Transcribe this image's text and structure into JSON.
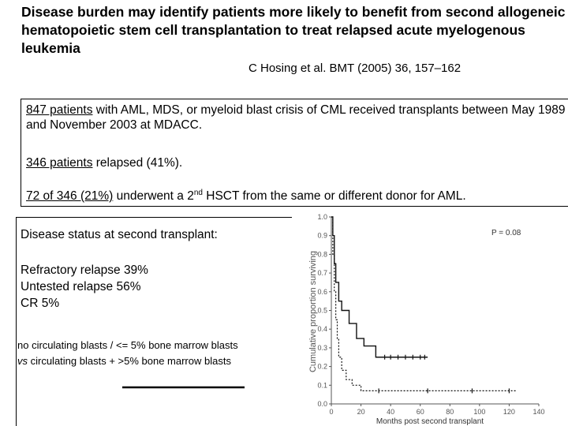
{
  "title": "Disease burden may identify patients more likely to benefit from second allogeneic hematopoietic stem cell transplantation to treat relapsed acute myelogenous leukemia",
  "citation": "C Hosing et al. BMT (2005) 36, 157–162",
  "box": {
    "line1_link": "847 patients",
    "line1_rest": " with AML, MDS, or myeloid blast crisis of CML received transplants between May 1989 and November 2003 at MDACC.",
    "line2_link": "346 patients",
    "line2_rest": " relapsed (41%).",
    "line3_link": "72 of 346 (21%)",
    "line3_rest_a": " underwent a 2",
    "line3_sup": "nd",
    "line3_rest_b": " HSCT from the same or different donor for AML."
  },
  "left": {
    "status_heading": "Disease status at second transplant:",
    "status_items": [
      "Refractory relapse 39%",
      "Untested relapse  56%",
      "CR 5%"
    ],
    "compare_line1": "no circulating blasts / <=  5% bone marrow blasts",
    "compare_line2_vs": "vs",
    "compare_line2_rest": " circulating blasts + >5% bone marrow blasts"
  },
  "chart_data": {
    "type": "line",
    "xlabel": "Months post second transplant",
    "ylabel": "Cumulative proportion surviving",
    "xlim": [
      0,
      140
    ],
    "ylim": [
      0,
      1.0
    ],
    "x_ticks": [
      "0",
      "20",
      "40",
      "60",
      "80",
      "100",
      "120",
      "140"
    ],
    "y_ticks": [
      "0.0",
      "0.1",
      "0.2",
      "0.3",
      "0.4",
      "0.5",
      "0.6",
      "0.7",
      "0.8",
      "0.9",
      "1.0"
    ],
    "annotation": "P = 0.08",
    "series": [
      {
        "style": "solid",
        "x": [
          0,
          1,
          1,
          2,
          2,
          3,
          3,
          5,
          5,
          7,
          7,
          12,
          12,
          17,
          17,
          22,
          22,
          30,
          30,
          65
        ],
        "y": [
          1.0,
          1.0,
          0.9,
          0.9,
          0.75,
          0.75,
          0.65,
          0.65,
          0.55,
          0.55,
          0.5,
          0.5,
          0.43,
          0.43,
          0.35,
          0.35,
          0.31,
          0.31,
          0.25,
          0.25
        ],
        "censored_x": [
          36,
          40,
          45,
          50,
          55,
          60,
          63
        ]
      },
      {
        "style": "dashed",
        "x": [
          0,
          1,
          1,
          2,
          2,
          3,
          3,
          4,
          4,
          5,
          5,
          7,
          7,
          10,
          10,
          14,
          14,
          20,
          20,
          125
        ],
        "y": [
          1.0,
          1.0,
          0.8,
          0.8,
          0.6,
          0.6,
          0.45,
          0.45,
          0.35,
          0.35,
          0.25,
          0.25,
          0.18,
          0.18,
          0.13,
          0.13,
          0.1,
          0.1,
          0.07,
          0.07
        ],
        "censored_x": [
          32,
          65,
          95,
          120
        ]
      }
    ]
  }
}
